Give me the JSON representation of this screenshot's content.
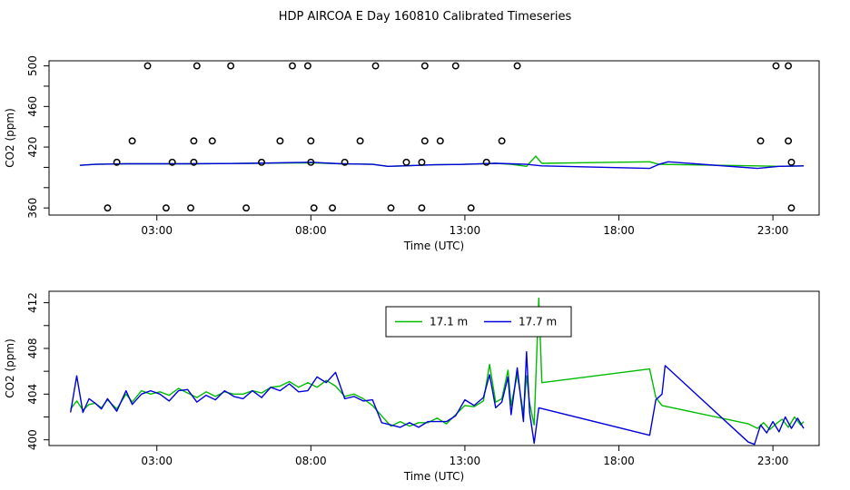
{
  "page_title": "HDP AIRCOA E  Day 160810  Calibrated Timeseries",
  "colors": {
    "green": "#00bb00",
    "blue": "#0000dd",
    "markers": "#000000"
  },
  "chart_data": [
    {
      "type": "line+scatter",
      "xlabel": "Time (UTC)",
      "ylabel": "CO2 (ppm)",
      "xlim": [
        -0.5,
        24.5
      ],
      "ylim": [
        353,
        505
      ],
      "x_ticks": [
        {
          "v": 3,
          "label": "03:00"
        },
        {
          "v": 8,
          "label": "08:00"
        },
        {
          "v": 13,
          "label": "13:00"
        },
        {
          "v": 18,
          "label": "18:00"
        },
        {
          "v": 23,
          "label": "23:00"
        }
      ],
      "y_ticks": [
        {
          "v": 360,
          "label": "360"
        },
        {
          "v": 380,
          "label": ""
        },
        {
          "v": 400,
          "label": ""
        },
        {
          "v": 420,
          "label": "420"
        },
        {
          "v": 440,
          "label": ""
        },
        {
          "v": 460,
          "label": "460"
        },
        {
          "v": 480,
          "label": ""
        },
        {
          "v": 500,
          "label": "500"
        }
      ],
      "series": [
        {
          "color": "green",
          "points": [
            [
              0.5,
              402
            ],
            [
              1,
              403
            ],
            [
              2,
              403.5
            ],
            [
              4,
              403.5
            ],
            [
              6,
              404
            ],
            [
              8,
              404.5
            ],
            [
              9,
              403.5
            ],
            [
              10,
              403
            ],
            [
              10.5,
              401
            ],
            [
              11,
              401.5
            ],
            [
              12,
              402.5
            ],
            [
              13,
              403
            ],
            [
              14,
              404
            ],
            [
              14.5,
              403
            ],
            [
              15,
              401
            ],
            [
              15.3,
              411
            ],
            [
              15.5,
              404
            ],
            [
              19,
              405.5
            ],
            [
              19.3,
              403
            ],
            [
              22.5,
              401.5
            ],
            [
              23.2,
              401
            ],
            [
              24,
              401.5
            ]
          ]
        },
        {
          "color": "blue",
          "points": [
            [
              0.5,
              402
            ],
            [
              1,
              403
            ],
            [
              2,
              403.5
            ],
            [
              4,
              403.5
            ],
            [
              6,
              404
            ],
            [
              8,
              405
            ],
            [
              9,
              403.5
            ],
            [
              10,
              403
            ],
            [
              10.5,
              401
            ],
            [
              11,
              401.5
            ],
            [
              12,
              402.5
            ],
            [
              13,
              403
            ],
            [
              14,
              404
            ],
            [
              14.5,
              403.5
            ],
            [
              15,
              403
            ],
            [
              15.5,
              401.5
            ],
            [
              19,
              399
            ],
            [
              19.3,
              403
            ],
            [
              19.6,
              405.5
            ],
            [
              22.5,
              399
            ],
            [
              23.2,
              401
            ],
            [
              24,
              401.5
            ]
          ]
        }
      ],
      "markers": [
        [
          1.4,
          360
        ],
        [
          1.7,
          405
        ],
        [
          2.2,
          426
        ],
        [
          2.7,
          500
        ],
        [
          3.3,
          360
        ],
        [
          3.5,
          405
        ],
        [
          4.1,
          360
        ],
        [
          4.2,
          405
        ],
        [
          4.2,
          426
        ],
        [
          4.3,
          500
        ],
        [
          4.8,
          426
        ],
        [
          5.4,
          500
        ],
        [
          5.9,
          360
        ],
        [
          6.4,
          405
        ],
        [
          7,
          426
        ],
        [
          7.4,
          500
        ],
        [
          7.9,
          500
        ],
        [
          8,
          426
        ],
        [
          8,
          405
        ],
        [
          8.1,
          360
        ],
        [
          8.7,
          360
        ],
        [
          9.1,
          405
        ],
        [
          9.6,
          426
        ],
        [
          10.1,
          500
        ],
        [
          10.6,
          360
        ],
        [
          11.1,
          405
        ],
        [
          11.6,
          405
        ],
        [
          11.6,
          360
        ],
        [
          11.7,
          426
        ],
        [
          11.7,
          500
        ],
        [
          12.2,
          426
        ],
        [
          12.7,
          500
        ],
        [
          13.2,
          360
        ],
        [
          13.7,
          405
        ],
        [
          14.2,
          426
        ],
        [
          14.7,
          500
        ],
        [
          22.6,
          426
        ],
        [
          23.1,
          500
        ],
        [
          23.5,
          500
        ],
        [
          23.5,
          426
        ],
        [
          23.6,
          405
        ],
        [
          23.6,
          360
        ]
      ]
    },
    {
      "type": "line",
      "xlabel": "Time (UTC)",
      "ylabel": "CO2 (ppm)",
      "xlim": [
        -0.5,
        24.5
      ],
      "ylim": [
        399.5,
        413
      ],
      "x_ticks": [
        {
          "v": 3,
          "label": "03:00"
        },
        {
          "v": 8,
          "label": "08:00"
        },
        {
          "v": 13,
          "label": "13:00"
        },
        {
          "v": 18,
          "label": "18:00"
        },
        {
          "v": 23,
          "label": "23:00"
        }
      ],
      "y_ticks": [
        {
          "v": 400,
          "label": "400"
        },
        {
          "v": 402,
          "label": ""
        },
        {
          "v": 404,
          "label": "404"
        },
        {
          "v": 406,
          "label": ""
        },
        {
          "v": 408,
          "label": "408"
        },
        {
          "v": 410,
          "label": ""
        },
        {
          "v": 412,
          "label": "412"
        }
      ],
      "legend": {
        "position": "top-center",
        "entries": [
          {
            "label": "17.1 m",
            "color": "green"
          },
          {
            "label": "17.7 m",
            "color": "blue"
          }
        ]
      },
      "series": [
        {
          "name": "17.1 m",
          "color": "green",
          "points": [
            [
              0.2,
              402.7
            ],
            [
              0.4,
              403.4
            ],
            [
              0.6,
              402.6
            ],
            [
              0.8,
              403.1
            ],
            [
              1.0,
              403.2
            ],
            [
              1.2,
              402.8
            ],
            [
              1.4,
              403.5
            ],
            [
              1.7,
              402.7
            ],
            [
              2.0,
              404.0
            ],
            [
              2.2,
              403.3
            ],
            [
              2.5,
              404.3
            ],
            [
              2.8,
              404.0
            ],
            [
              3.1,
              404.2
            ],
            [
              3.4,
              403.9
            ],
            [
              3.7,
              404.5
            ],
            [
              4.0,
              404.1
            ],
            [
              4.3,
              403.7
            ],
            [
              4.6,
              404.2
            ],
            [
              4.9,
              403.8
            ],
            [
              5.2,
              404.2
            ],
            [
              5.5,
              404.0
            ],
            [
              5.8,
              404.0
            ],
            [
              6.1,
              404.3
            ],
            [
              6.4,
              404.1
            ],
            [
              6.7,
              404.6
            ],
            [
              7.0,
              404.7
            ],
            [
              7.3,
              405.1
            ],
            [
              7.6,
              404.6
            ],
            [
              7.9,
              405.0
            ],
            [
              8.2,
              404.6
            ],
            [
              8.5,
              405.2
            ],
            [
              8.8,
              404.7
            ],
            [
              9.1,
              403.8
            ],
            [
              9.4,
              404.0
            ],
            [
              9.7,
              403.6
            ],
            [
              10.0,
              403.0
            ],
            [
              10.3,
              402.1
            ],
            [
              10.6,
              401.2
            ],
            [
              10.9,
              401.6
            ],
            [
              11.2,
              401.2
            ],
            [
              11.5,
              401.5
            ],
            [
              11.8,
              401.5
            ],
            [
              12.1,
              401.9
            ],
            [
              12.4,
              401.4
            ],
            [
              12.7,
              402.2
            ],
            [
              13.0,
              403.0
            ],
            [
              13.3,
              402.9
            ],
            [
              13.6,
              403.4
            ],
            [
              13.8,
              406.6
            ],
            [
              14.0,
              403.3
            ],
            [
              14.2,
              403.6
            ],
            [
              14.4,
              406.1
            ],
            [
              14.5,
              403.0
            ],
            [
              14.7,
              405.7
            ],
            [
              14.9,
              402.3
            ],
            [
              15.0,
              405.6
            ],
            [
              15.1,
              403.2
            ],
            [
              15.25,
              401.3
            ],
            [
              15.4,
              412.4
            ],
            [
              15.5,
              405.0
            ],
            [
              19.0,
              406.2
            ],
            [
              19.2,
              403.7
            ],
            [
              19.4,
              403.0
            ],
            [
              22.2,
              401.4
            ],
            [
              22.5,
              401.0
            ],
            [
              22.7,
              401.5
            ],
            [
              22.9,
              400.9
            ],
            [
              23.1,
              401.4
            ],
            [
              23.3,
              401.8
            ],
            [
              23.5,
              401.1
            ],
            [
              23.7,
              402.0
            ],
            [
              23.9,
              401.3
            ],
            [
              24.0,
              401.6
            ]
          ]
        },
        {
          "name": "17.7 m",
          "color": "blue",
          "points": [
            [
              0.2,
              402.4
            ],
            [
              0.4,
              405.6
            ],
            [
              0.6,
              402.4
            ],
            [
              0.8,
              403.6
            ],
            [
              1.0,
              403.2
            ],
            [
              1.2,
              402.7
            ],
            [
              1.4,
              403.6
            ],
            [
              1.7,
              402.5
            ],
            [
              2.0,
              404.3
            ],
            [
              2.2,
              403.1
            ],
            [
              2.5,
              404.0
            ],
            [
              2.8,
              404.3
            ],
            [
              3.1,
              404.0
            ],
            [
              3.4,
              403.4
            ],
            [
              3.7,
              404.3
            ],
            [
              4.0,
              404.4
            ],
            [
              4.3,
              403.3
            ],
            [
              4.6,
              403.9
            ],
            [
              4.9,
              403.5
            ],
            [
              5.2,
              404.3
            ],
            [
              5.5,
              403.8
            ],
            [
              5.8,
              403.6
            ],
            [
              6.1,
              404.3
            ],
            [
              6.4,
              403.7
            ],
            [
              6.7,
              404.6
            ],
            [
              7.0,
              404.3
            ],
            [
              7.3,
              404.9
            ],
            [
              7.6,
              404.2
            ],
            [
              7.9,
              404.3
            ],
            [
              8.2,
              405.5
            ],
            [
              8.5,
              405.0
            ],
            [
              8.8,
              405.9
            ],
            [
              9.1,
              403.6
            ],
            [
              9.4,
              403.8
            ],
            [
              9.7,
              403.4
            ],
            [
              10.0,
              403.5
            ],
            [
              10.3,
              401.5
            ],
            [
              10.6,
              401.3
            ],
            [
              10.9,
              401.1
            ],
            [
              11.2,
              401.5
            ],
            [
              11.5,
              401.1
            ],
            [
              11.8,
              401.6
            ],
            [
              12.1,
              401.6
            ],
            [
              12.4,
              401.6
            ],
            [
              12.7,
              402.1
            ],
            [
              13.0,
              403.5
            ],
            [
              13.3,
              403.0
            ],
            [
              13.6,
              403.7
            ],
            [
              13.8,
              405.7
            ],
            [
              14.0,
              402.8
            ],
            [
              14.2,
              403.3
            ],
            [
              14.4,
              405.5
            ],
            [
              14.5,
              402.2
            ],
            [
              14.7,
              406.3
            ],
            [
              14.9,
              401.6
            ],
            [
              15.0,
              407.7
            ],
            [
              15.1,
              402.4
            ],
            [
              15.25,
              399.7
            ],
            [
              15.4,
              402.8
            ],
            [
              19.0,
              400.4
            ],
            [
              19.2,
              403.5
            ],
            [
              19.4,
              404.0
            ],
            [
              19.5,
              406.5
            ],
            [
              22.2,
              399.8
            ],
            [
              22.4,
              399.6
            ],
            [
              22.6,
              401.3
            ],
            [
              22.8,
              400.6
            ],
            [
              23.0,
              401.6
            ],
            [
              23.2,
              400.7
            ],
            [
              23.4,
              402.0
            ],
            [
              23.6,
              401.0
            ],
            [
              23.8,
              401.9
            ],
            [
              24.0,
              401.0
            ]
          ]
        }
      ]
    }
  ]
}
